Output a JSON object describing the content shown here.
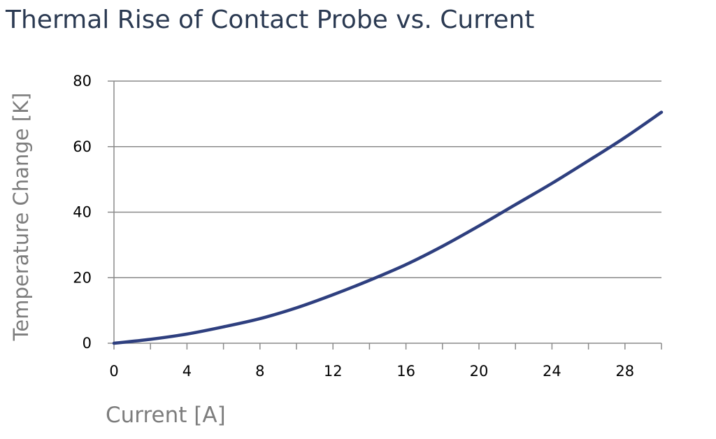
{
  "chart_data": {
    "type": "line",
    "title": "Thermal Rise of Contact Probe vs. Current",
    "xlabel": "Current [A]",
    "ylabel": "Temperature Change [K]",
    "xlim": [
      0,
      30
    ],
    "ylim": [
      0,
      80
    ],
    "x_ticks": [
      0,
      4,
      8,
      12,
      16,
      20,
      24,
      28
    ],
    "y_ticks": [
      0,
      20,
      40,
      60,
      80
    ],
    "grid": "horizontal",
    "legend": "none",
    "series": [
      {
        "color": "#2e3f7f",
        "x": [
          0,
          2,
          4,
          6,
          8,
          10,
          12,
          14,
          16,
          18,
          20,
          22,
          24,
          26,
          28,
          30
        ],
        "y": [
          0,
          1.2,
          2.8,
          5,
          7.5,
          10.8,
          14.8,
          19.2,
          24,
          29.6,
          35.8,
          42.3,
          48.8,
          55.7,
          62.8,
          70.5
        ]
      }
    ]
  }
}
